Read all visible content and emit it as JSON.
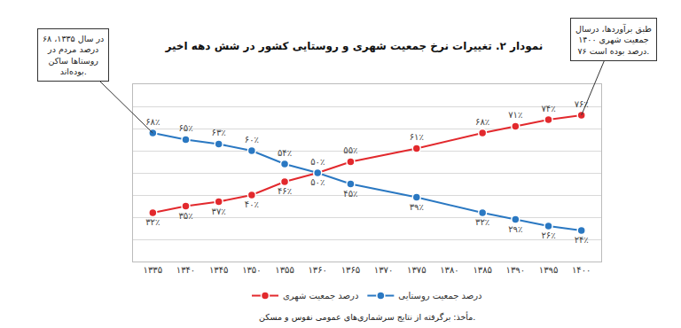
{
  "chart_data": {
    "type": "line",
    "title": "نمودار ۲. تغییرات نرخ جمعیت شهری و روستایی کشور در شش دهه اخیر",
    "x": [
      1335,
      1340,
      1345,
      1350,
      1355,
      1360,
      1365,
      1375,
      1385,
      1390,
      1395,
      1400
    ],
    "series": [
      {
        "name": "درصد جمعیت شهری",
        "color": "#e2292d",
        "marker": "circle",
        "line_style": "solid",
        "values": [
          32,
          35,
          37,
          40,
          46,
          50,
          55,
          61,
          68,
          71,
          74,
          76
        ],
        "value_labels": [
          "۳۲٪",
          "۳۵٪",
          "۳۷٪",
          "۴۰٪",
          "۴۶٪",
          "۵۰٪",
          "۵۵٪",
          "۶۱٪",
          "۶۸٪",
          "۷۱٪",
          "۷۴٪",
          "۷۶٪"
        ]
      },
      {
        "name": "درصد جمعیت روستایی",
        "color": "#2a78c2",
        "marker": "circle",
        "line_style": "solid",
        "values": [
          68,
          65,
          63,
          60,
          54,
          50,
          45,
          39,
          32,
          29,
          26,
          24
        ],
        "value_labels": [
          "۶۸٪",
          "۶۵٪",
          "۶۳٪",
          "۶۰٪",
          "۵۴٪",
          "۵۰٪",
          "۴۵٪",
          "۳۹٪",
          "۳۲٪",
          "۲۹٪",
          "۲۶٪",
          "۲۴٪"
        ]
      }
    ],
    "xlim": [
      1332,
      1403
    ],
    "xticks": [
      {
        "value": 1335,
        "label": "۱۳۳۵"
      },
      {
        "value": 1340,
        "label": "۱۳۴۰"
      },
      {
        "value": 1345,
        "label": "۱۳۴۵"
      },
      {
        "value": 1350,
        "label": "۱۳۵۰"
      },
      {
        "value": 1355,
        "label": "۱۳۵۵"
      },
      {
        "value": 1360,
        "label": "۱۳۶۰"
      },
      {
        "value": 1365,
        "label": "۱۳۶۵"
      },
      {
        "value": 1370,
        "label": "۱۳۷۰"
      },
      {
        "value": 1375,
        "label": "۱۳۷۵"
      },
      {
        "value": 1380,
        "label": "۱۳۸۰"
      },
      {
        "value": 1385,
        "label": "۱۳۸۵"
      },
      {
        "value": 1390,
        "label": "۱۳۹۰"
      },
      {
        "value": 1395,
        "label": "۱۳۹۵"
      },
      {
        "value": 1400,
        "label": "۱۴۰۰"
      }
    ],
    "ylim": [
      10,
      90
    ],
    "yticks": [
      10,
      20,
      30,
      40,
      50,
      60,
      70,
      80,
      90
    ],
    "grid": true,
    "tick_labels": "x",
    "data_labels": true,
    "legend": "bottom",
    "annotations": [
      {
        "text": [
          "در سال ۱۳۳۵، ۶۸",
          "درصد مردم در",
          "روستاها ساکن",
          "بوده‌اند."
        ],
        "x": 1335,
        "y": 68
      },
      {
        "text": [
          "طبق برآوردها، درسال",
          "۱۴۰۰ جمعیت شهری",
          "۷۶ درصد بوده است."
        ],
        "x": 1400,
        "y": 76
      }
    ],
    "source": "مأخذ: برگرفته از نتایج سرشماری‌های عمومی نفوس و مسکن."
  }
}
